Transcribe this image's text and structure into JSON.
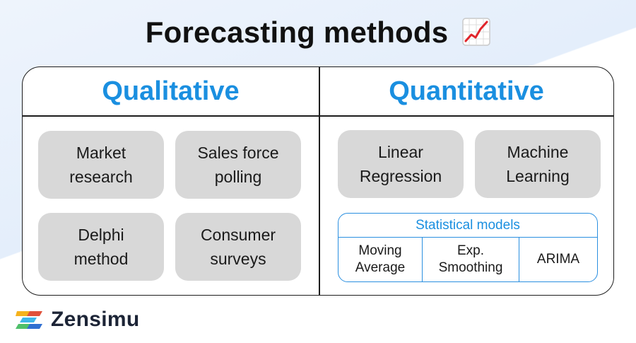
{
  "title": "Forecasting methods",
  "title_icon": "chart-increasing-icon",
  "qualitative": {
    "heading": "Qualitative",
    "methods": [
      "Market\nresearch",
      "Sales force\npolling",
      "Delphi\nmethod",
      "Consumer\nsurveys"
    ]
  },
  "quantitative": {
    "heading": "Quantitative",
    "methods": [
      "Linear\nRegression",
      "Machine\nLearning"
    ],
    "statistical": {
      "title": "Statistical models",
      "models": [
        "Moving\nAverage",
        "Exp.\nSmoothing",
        "ARIMA"
      ]
    }
  },
  "brand": {
    "name": "Zensimu",
    "logo": "zensimu-logo-icon"
  },
  "colors": {
    "accent": "#1a8fe0",
    "pill": "#d8d8d8",
    "text": "#111111"
  }
}
